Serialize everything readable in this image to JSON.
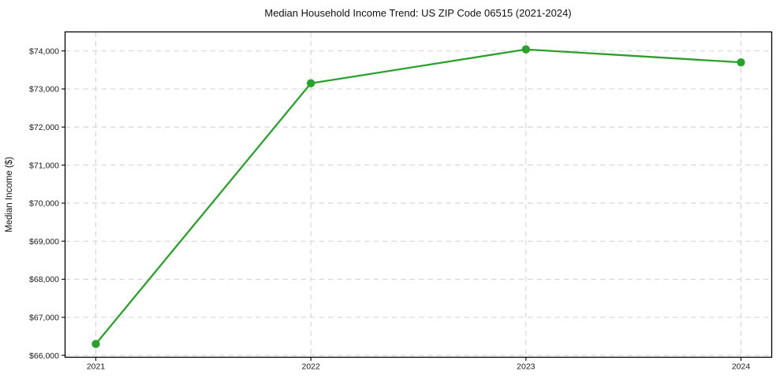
{
  "figure": {
    "background": "#ffffff"
  },
  "chart_data": {
    "type": "line",
    "title": "Median Household Income Trend: US ZIP Code 06515 (2021-2024)",
    "xlabel": "",
    "ylabel": "Median Income ($)",
    "categories": [
      "2021",
      "2022",
      "2023",
      "2024"
    ],
    "series": [
      {
        "name": "median-household-income",
        "values": [
          66300,
          73150,
          74040,
          73700
        ],
        "color": "#2ca02c",
        "marker": "circle",
        "line_style": "solid"
      }
    ],
    "xtick_labels": [
      "2021",
      "2022",
      "2023",
      "2024"
    ],
    "yticks": [
      66000,
      67000,
      68000,
      69000,
      70000,
      71000,
      72000,
      73000,
      74000
    ],
    "ytick_labels": [
      "$66,000",
      "$67,000",
      "$68,000",
      "$69,000",
      "$70,000",
      "$71,000",
      "$72,000",
      "$73,000",
      "$74,000"
    ],
    "ylim": [
      65950,
      74500
    ],
    "grid": true,
    "grid_style": "dashed",
    "legend": "none",
    "colors": {
      "line": "#2ca02c",
      "grid": "#cdcdcd",
      "spine": "#000000",
      "text": "#1a1a1a"
    }
  }
}
